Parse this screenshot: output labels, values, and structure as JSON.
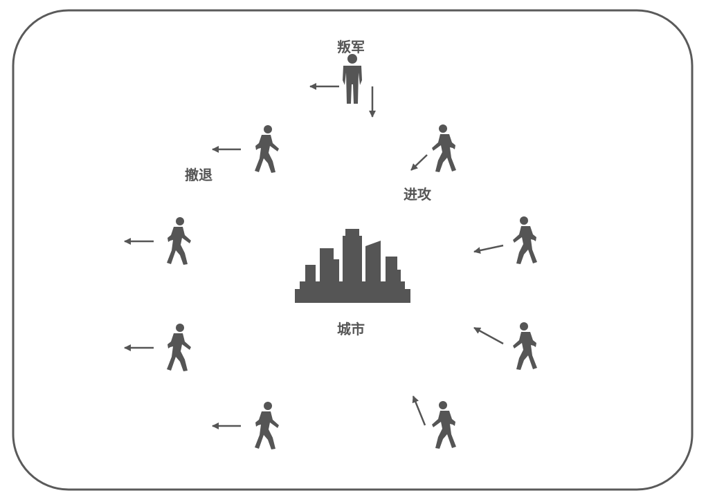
{
  "labels": {
    "rebel": "叛军",
    "retreat": "撤退",
    "attack": "进攻",
    "city": "城市"
  },
  "colors": {
    "ink": "#555555",
    "border": "#5a5a5a",
    "background": "#ffffff"
  },
  "icons": {
    "city": "city-skyline-icon",
    "standing": "standing-person-icon",
    "walking": "walking-person-icon",
    "arrow": "arrow-icon"
  }
}
